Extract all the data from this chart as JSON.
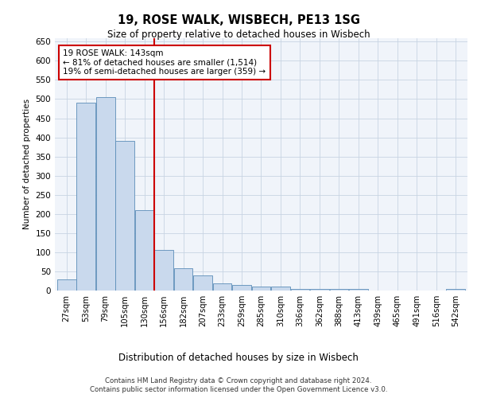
{
  "title1": "19, ROSE WALK, WISBECH, PE13 1SG",
  "title2": "Size of property relative to detached houses in Wisbech",
  "xlabel": "Distribution of detached houses by size in Wisbech",
  "ylabel": "Number of detached properties",
  "footer1": "Contains HM Land Registry data © Crown copyright and database right 2024.",
  "footer2": "Contains public sector information licensed under the Open Government Licence v3.0.",
  "categories": [
    "27sqm",
    "53sqm",
    "79sqm",
    "105sqm",
    "130sqm",
    "156sqm",
    "182sqm",
    "207sqm",
    "233sqm",
    "259sqm",
    "285sqm",
    "310sqm",
    "336sqm",
    "362sqm",
    "388sqm",
    "413sqm",
    "439sqm",
    "465sqm",
    "491sqm",
    "516sqm",
    "542sqm"
  ],
  "values": [
    30,
    490,
    505,
    390,
    209,
    107,
    59,
    40,
    18,
    14,
    11,
    10,
    5,
    4,
    4,
    5,
    1,
    1,
    0,
    1,
    5
  ],
  "bar_color": "#c9d9ed",
  "bar_edge_color": "#5b8db8",
  "vline_x": 4.5,
  "vline_color": "#cc0000",
  "annotation_text": "19 ROSE WALK: 143sqm\n← 81% of detached houses are smaller (1,514)\n19% of semi-detached houses are larger (359) →",
  "annotation_box_color": "white",
  "annotation_box_edge": "#cc0000",
  "ylim": [
    0,
    660
  ],
  "yticks": [
    0,
    50,
    100,
    150,
    200,
    250,
    300,
    350,
    400,
    450,
    500,
    550,
    600,
    650
  ],
  "grid_color": "#c8d4e3",
  "bg_color": "#f0f4fa"
}
